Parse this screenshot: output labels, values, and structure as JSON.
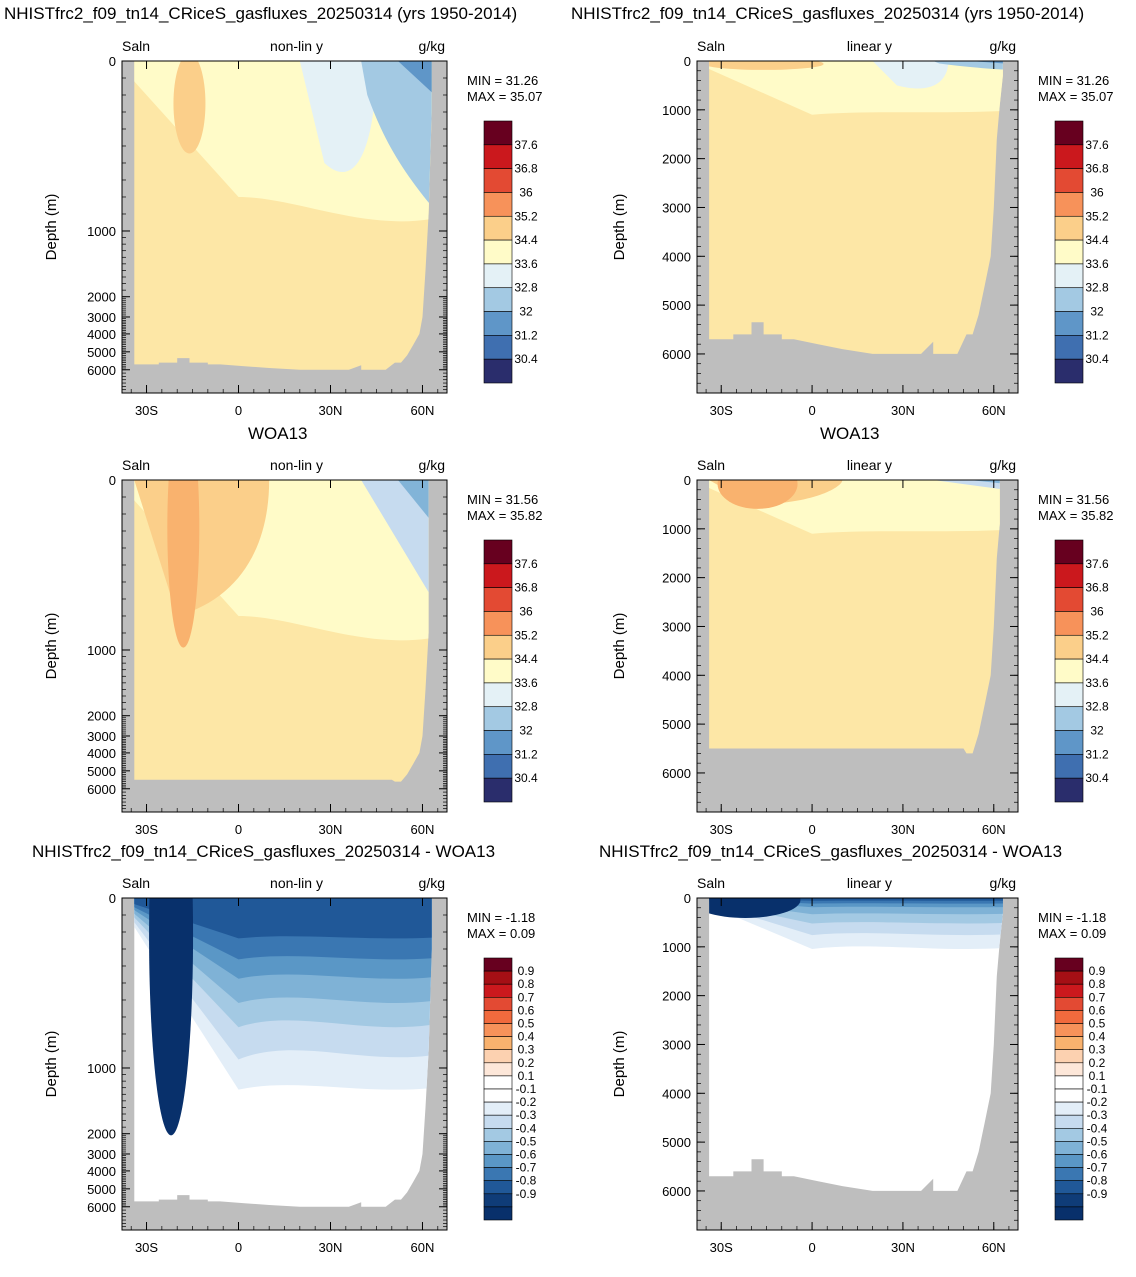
{
  "titles": {
    "row1_left": "NHISTfrc2_f09_tn14_CRiceS_gasfluxes_20250314 (yrs 1950-2014)",
    "row1_right": "NHISTfrc2_f09_tn14_CRiceS_gasfluxes_20250314 (yrs 1950-2014)",
    "row2_left": "WOA13",
    "row2_right": "WOA13",
    "row3_left": "NHISTfrc2_f09_tn14_CRiceS_gasfluxes_20250314 - WOA13",
    "row3_right": "NHISTfrc2_f09_tn14_CRiceS_gasfluxes_20250314 - WOA13"
  },
  "chart_data": [
    {
      "type": "heatmap",
      "var": "Saln",
      "mode": "non-lin y",
      "units": "g/kg",
      "ylabel": "Depth (m)",
      "min_label": "MIN =  31.26",
      "max_label": "MAX =  35.07",
      "xticks": [
        "30S",
        "0",
        "30N",
        "60N"
      ],
      "yticks": [
        "0",
        "1000",
        "2000",
        "3000",
        "4000",
        "5000",
        "6000"
      ],
      "colorbar": [
        "37.6",
        "36.8",
        "36",
        "35.2",
        "34.4",
        "33.6",
        "32.8",
        "32",
        "31.2",
        "30.4"
      ],
      "palette": "abs",
      "field": "model"
    },
    {
      "type": "heatmap",
      "var": "Saln",
      "mode": "linear y",
      "units": "g/kg",
      "ylabel": "Depth (m)",
      "min_label": "MIN =  31.26",
      "max_label": "MAX =  35.07",
      "xticks": [
        "30S",
        "0",
        "30N",
        "60N"
      ],
      "yticks": [
        "0",
        "1000",
        "2000",
        "3000",
        "4000",
        "5000",
        "6000"
      ],
      "colorbar": [
        "37.6",
        "36.8",
        "36",
        "35.2",
        "34.4",
        "33.6",
        "32.8",
        "32",
        "31.2",
        "30.4"
      ],
      "palette": "abs",
      "field": "model"
    },
    {
      "type": "heatmap",
      "var": "Saln",
      "mode": "non-lin y",
      "units": "g/kg",
      "ylabel": "Depth (m)",
      "min_label": "MIN =  31.56",
      "max_label": "MAX =  35.82",
      "xticks": [
        "30S",
        "0",
        "30N",
        "60N"
      ],
      "yticks": [
        "0",
        "1000",
        "2000",
        "3000",
        "4000",
        "5000",
        "6000"
      ],
      "colorbar": [
        "37.6",
        "36.8",
        "36",
        "35.2",
        "34.4",
        "33.6",
        "32.8",
        "32",
        "31.2",
        "30.4"
      ],
      "palette": "abs",
      "field": "obs"
    },
    {
      "type": "heatmap",
      "var": "Saln",
      "mode": "linear y",
      "units": "g/kg",
      "ylabel": "Depth (m)",
      "min_label": "MIN =  31.56",
      "max_label": "MAX =  35.82",
      "xticks": [
        "30S",
        "0",
        "30N",
        "60N"
      ],
      "yticks": [
        "0",
        "1000",
        "2000",
        "3000",
        "4000",
        "5000",
        "6000"
      ],
      "colorbar": [
        "37.6",
        "36.8",
        "36",
        "35.2",
        "34.4",
        "33.6",
        "32.8",
        "32",
        "31.2",
        "30.4"
      ],
      "palette": "abs",
      "field": "obs"
    },
    {
      "type": "heatmap",
      "var": "Saln",
      "mode": "non-lin y",
      "units": "g/kg",
      "ylabel": "Depth (m)",
      "min_label": "MIN = -1.18",
      "max_label": "MAX =  0.09",
      "xticks": [
        "30S",
        "0",
        "30N",
        "60N"
      ],
      "yticks": [
        "0",
        "1000",
        "2000",
        "3000",
        "4000",
        "5000",
        "6000"
      ],
      "colorbar": [
        "0.9",
        "0.8",
        "0.7",
        "0.6",
        "0.5",
        "0.4",
        "0.3",
        "0.2",
        "0.1",
        "-0.1",
        "-0.2",
        "-0.3",
        "-0.4",
        "-0.5",
        "-0.6",
        "-0.7",
        "-0.8",
        "-0.9"
      ],
      "palette": "diff",
      "field": "diff"
    },
    {
      "type": "heatmap",
      "var": "Saln",
      "mode": "linear y",
      "units": "g/kg",
      "ylabel": "Depth (m)",
      "min_label": "MIN = -1.18",
      "max_label": "MAX =  0.09",
      "xticks": [
        "30S",
        "0",
        "30N",
        "60N"
      ],
      "yticks": [
        "0",
        "1000",
        "2000",
        "3000",
        "4000",
        "5000",
        "6000"
      ],
      "colorbar": [
        "0.9",
        "0.8",
        "0.7",
        "0.6",
        "0.5",
        "0.4",
        "0.3",
        "0.2",
        "0.1",
        "-0.1",
        "-0.2",
        "-0.3",
        "-0.4",
        "-0.5",
        "-0.6",
        "-0.7",
        "-0.8",
        "-0.9"
      ],
      "palette": "diff",
      "field": "diff"
    }
  ],
  "colors": {
    "land": "#bebebe",
    "abs_palette": [
      "#67001f",
      "#a50f15",
      "#cb181d",
      "#e34a33",
      "#f16a3d",
      "#f7925a",
      "#f9b26e",
      "#fbcf8a",
      "#fde7a6",
      "#fffbc8",
      "#e4f1f6",
      "#c6dbef",
      "#a3c9e3",
      "#82b4d8",
      "#5f96c8",
      "#3f6fb0",
      "#2f4e94",
      "#2a2d6c"
    ],
    "diff_palette": [
      "#67001f",
      "#a50f15",
      "#cb181d",
      "#e34a33",
      "#f16a3d",
      "#f7925a",
      "#f9b26e",
      "#fcd1b0",
      "#fde7d9",
      "#ffffff",
      "#ffffff",
      "#e3eef8",
      "#c6dbef",
      "#a3c9e3",
      "#7fb2d6",
      "#5a97c6",
      "#3a77b2",
      "#205898",
      "#0f3c78",
      "#08306b"
    ]
  }
}
